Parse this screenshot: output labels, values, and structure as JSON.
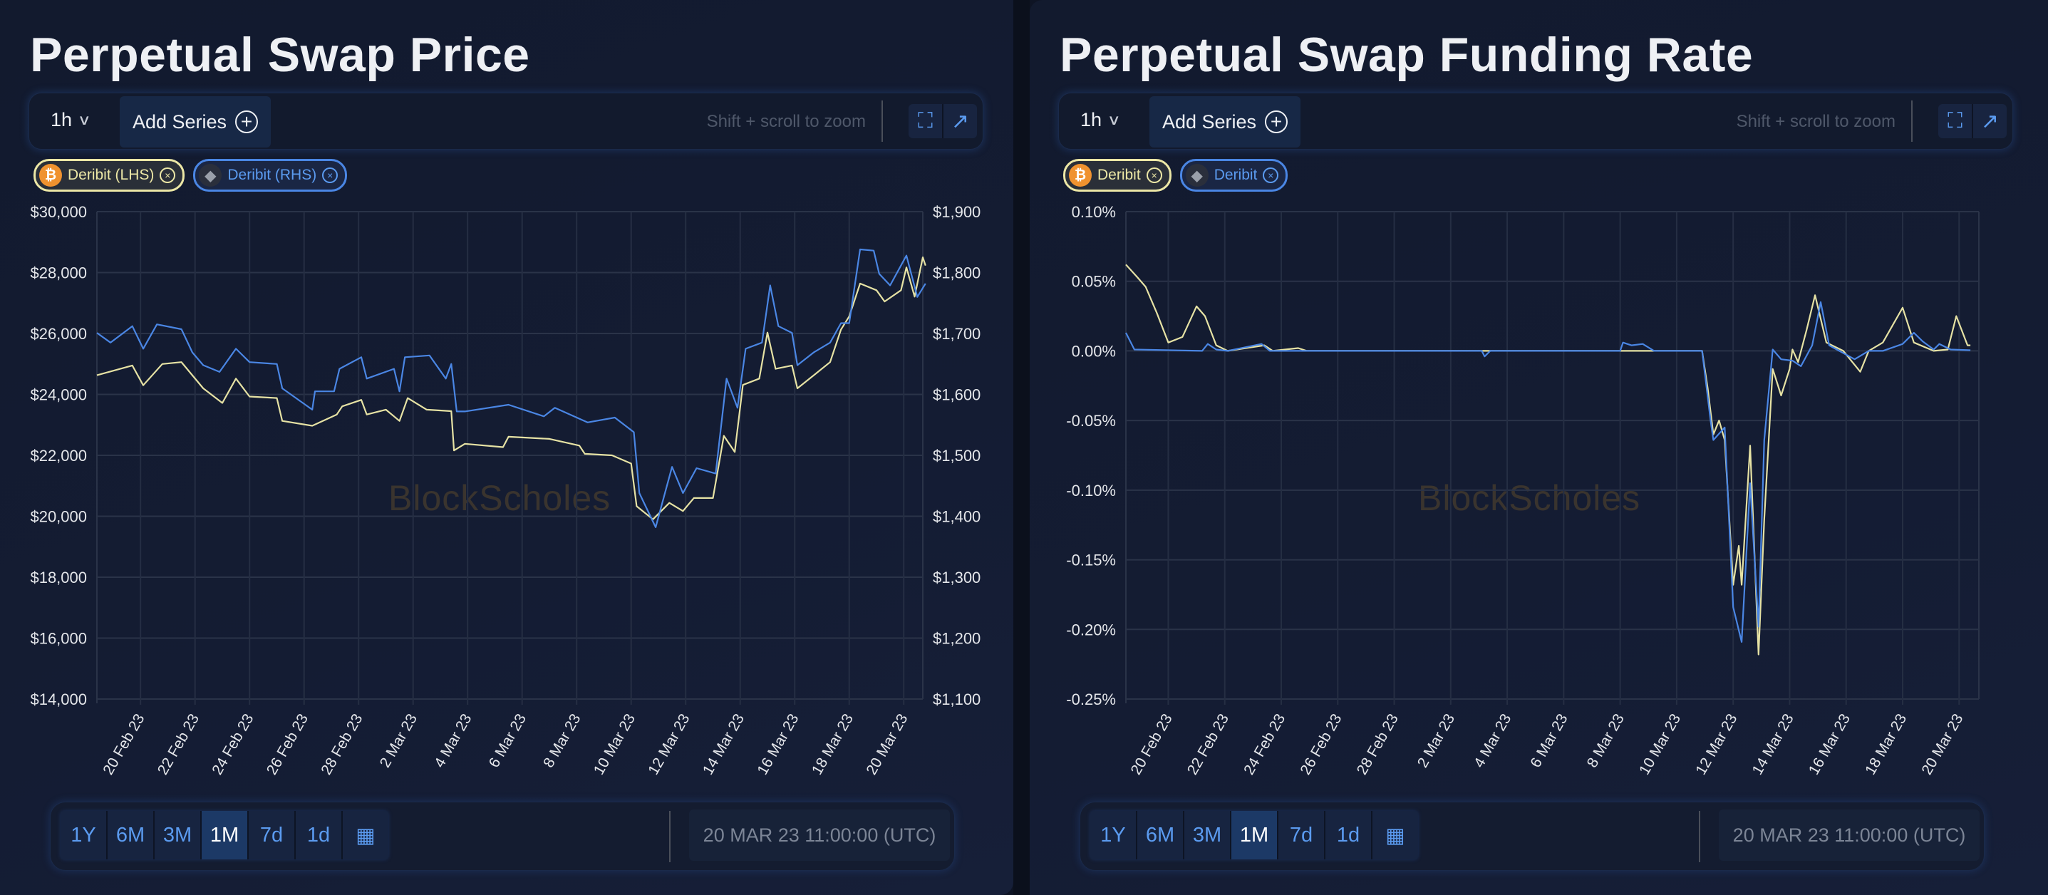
{
  "panels": [
    {
      "title": "Perpetual Swap Price",
      "interval": "1h",
      "add_series_label": "Add Series",
      "zoom_hint": "Shift + scroll to zoom",
      "chips": [
        {
          "label": "Deribit (LHS)",
          "coin": "btc",
          "color": "#ece7a6"
        },
        {
          "label": "Deribit (RHS)",
          "coin": "eth",
          "color": "#4a86e4"
        }
      ],
      "watermark": "BlockScholes",
      "ranges": [
        "1Y",
        "6M",
        "3M",
        "1M",
        "7d",
        "1d"
      ],
      "active_range": "1M",
      "timestamp": "20 MAR 23 11:00:00 (UTC)"
    },
    {
      "title": "Perpetual Swap Funding Rate",
      "interval": "1h",
      "add_series_label": "Add Series",
      "zoom_hint": "Shift + scroll to zoom",
      "chips": [
        {
          "label": "Deribit",
          "coin": "btc",
          "color": "#ece7a6"
        },
        {
          "label": "Deribit",
          "coin": "eth",
          "color": "#4a86e4"
        }
      ],
      "watermark": "BlockScholes",
      "ranges": [
        "1Y",
        "6M",
        "3M",
        "1M",
        "7d",
        "1d"
      ],
      "active_range": "1M",
      "timestamp": "20 MAR 23 11:00:00 (UTC)"
    }
  ],
  "chart_data": [
    {
      "type": "line",
      "title": "Perpetual Swap Price",
      "x_unit": "days since 20 Feb 23",
      "xlim": [
        -1.6,
        28.7
      ],
      "x_ticks": [
        0,
        2,
        4,
        6,
        8,
        10,
        12,
        14,
        16,
        18,
        20,
        22,
        24,
        26,
        28
      ],
      "x_tick_labels": [
        "20 Feb 23",
        "22 Feb 23",
        "24 Feb 23",
        "26 Feb 23",
        "28 Feb 23",
        "2 Mar 23",
        "4 Mar 23",
        "6 Mar 23",
        "8 Mar 23",
        "10 Mar 23",
        "12 Mar 23",
        "14 Mar 23",
        "16 Mar 23",
        "18 Mar 23",
        "20 Mar 23"
      ],
      "ylim_left": [
        14000,
        30000
      ],
      "y_ticks_left": [
        "$30,000",
        "$28,000",
        "$26,000",
        "$24,000",
        "$22,000",
        "$20,000",
        "$18,000",
        "$16,000",
        "$14,000"
      ],
      "ylim_right": [
        1100,
        1900
      ],
      "y_ticks_right": [
        "$1,900",
        "$1,800",
        "$1,700",
        "$1,600",
        "$1,500",
        "$1,400",
        "$1,300",
        "$1,200",
        "$1,100"
      ],
      "grid": true,
      "series": [
        {
          "name": "Deribit (LHS) BTC",
          "axis": "left",
          "color": "#e6e2a4",
          "points": [
            [
              -1.6,
              24630
            ],
            [
              -0.3,
              24950
            ],
            [
              0.1,
              24300
            ],
            [
              0.8,
              25000
            ],
            [
              1.5,
              25060
            ],
            [
              2.3,
              24200
            ],
            [
              3.0,
              23720
            ],
            [
              3.5,
              24520
            ],
            [
              4.0,
              23930
            ],
            [
              5.0,
              23880
            ],
            [
              5.2,
              23130
            ],
            [
              6.3,
              22970
            ],
            [
              7.2,
              23340
            ],
            [
              7.4,
              23610
            ],
            [
              8.1,
              23820
            ],
            [
              8.3,
              23340
            ],
            [
              9.0,
              23500
            ],
            [
              9.5,
              23130
            ],
            [
              9.8,
              23880
            ],
            [
              10.5,
              23500
            ],
            [
              11.4,
              23450
            ],
            [
              11.5,
              22160
            ],
            [
              11.9,
              22380
            ],
            [
              13.3,
              22270
            ],
            [
              13.5,
              22610
            ],
            [
              15.0,
              22540
            ],
            [
              16.1,
              22320
            ],
            [
              16.3,
              22050
            ],
            [
              17.3,
              22000
            ],
            [
              18.0,
              21730
            ],
            [
              18.2,
              20330
            ],
            [
              18.8,
              19900
            ],
            [
              19.4,
              20440
            ],
            [
              19.9,
              20170
            ],
            [
              20.3,
              20600
            ],
            [
              21.0,
              20600
            ],
            [
              21.4,
              22640
            ],
            [
              21.8,
              22110
            ],
            [
              22.1,
              24310
            ],
            [
              22.7,
              24520
            ],
            [
              23.0,
              26030
            ],
            [
              23.3,
              24840
            ],
            [
              23.9,
              24950
            ],
            [
              24.1,
              24200
            ],
            [
              24.7,
              24630
            ],
            [
              25.3,
              25060
            ],
            [
              25.7,
              26130
            ],
            [
              26.0,
              26560
            ],
            [
              26.4,
              27640
            ],
            [
              27.0,
              27420
            ],
            [
              27.3,
              27050
            ],
            [
              27.9,
              27420
            ],
            [
              28.1,
              28170
            ],
            [
              28.4,
              27210
            ],
            [
              28.7,
              28500
            ],
            [
              28.8,
              28230
            ]
          ]
        },
        {
          "name": "Deribit (RHS) ETH",
          "axis": "right",
          "color": "#4a86e4",
          "points": [
            [
              -1.6,
              1701
            ],
            [
              -1.1,
              1685
            ],
            [
              -0.3,
              1712
            ],
            [
              0.1,
              1675
            ],
            [
              0.6,
              1715
            ],
            [
              1.5,
              1707
            ],
            [
              1.9,
              1669
            ],
            [
              2.3,
              1648
            ],
            [
              2.9,
              1637
            ],
            [
              3.5,
              1675
            ],
            [
              4.0,
              1653
            ],
            [
              5.0,
              1650
            ],
            [
              5.2,
              1610
            ],
            [
              6.3,
              1575
            ],
            [
              6.4,
              1605
            ],
            [
              7.1,
              1605
            ],
            [
              7.3,
              1642
            ],
            [
              8.1,
              1661
            ],
            [
              8.3,
              1626
            ],
            [
              9.3,
              1642
            ],
            [
              9.5,
              1605
            ],
            [
              9.7,
              1661
            ],
            [
              10.6,
              1664
            ],
            [
              11.2,
              1626
            ],
            [
              11.4,
              1650
            ],
            [
              11.6,
              1572
            ],
            [
              11.9,
              1572
            ],
            [
              13.5,
              1583
            ],
            [
              14.8,
              1564
            ],
            [
              15.2,
              1578
            ],
            [
              16.4,
              1554
            ],
            [
              17.4,
              1562
            ],
            [
              18.1,
              1538
            ],
            [
              18.3,
              1438
            ],
            [
              18.9,
              1382
            ],
            [
              19.5,
              1481
            ],
            [
              19.9,
              1438
            ],
            [
              20.4,
              1479
            ],
            [
              21.1,
              1470
            ],
            [
              21.5,
              1626
            ],
            [
              21.9,
              1578
            ],
            [
              22.2,
              1675
            ],
            [
              22.8,
              1685
            ],
            [
              23.1,
              1779
            ],
            [
              23.4,
              1712
            ],
            [
              23.9,
              1701
            ],
            [
              24.1,
              1648
            ],
            [
              24.7,
              1669
            ],
            [
              25.3,
              1685
            ],
            [
              25.7,
              1717
            ],
            [
              26.0,
              1717
            ],
            [
              26.4,
              1838
            ],
            [
              26.9,
              1836
            ],
            [
              27.1,
              1798
            ],
            [
              27.5,
              1779
            ],
            [
              28.1,
              1828
            ],
            [
              28.5,
              1760
            ],
            [
              28.8,
              1782
            ]
          ]
        }
      ]
    },
    {
      "type": "line",
      "title": "Perpetual Swap Funding Rate",
      "x_unit": "days since 20 Feb 23",
      "xlim": [
        -1.5,
        28.7
      ],
      "x_ticks": [
        0,
        2,
        4,
        6,
        8,
        10,
        12,
        14,
        16,
        18,
        20,
        22,
        24,
        26,
        28
      ],
      "x_tick_labels": [
        "20 Feb 23",
        "22 Feb 23",
        "24 Feb 23",
        "26 Feb 23",
        "28 Feb 23",
        "2 Mar 23",
        "4 Mar 23",
        "6 Mar 23",
        "8 Mar 23",
        "10 Mar 23",
        "12 Mar 23",
        "14 Mar 23",
        "16 Mar 23",
        "18 Mar 23",
        "20 Mar 23"
      ],
      "ylim_left": [
        -0.25,
        0.1
      ],
      "y_ticks_left": [
        "0.10%",
        "0.05%",
        "0.00%",
        "-0.05%",
        "-0.10%",
        "-0.15%",
        "-0.20%",
        "-0.25%"
      ],
      "y_unit": "%",
      "grid": true,
      "series": [
        {
          "name": "Deribit BTC",
          "axis": "left",
          "color": "#e6e2a4",
          "points": [
            [
              -1.5,
              0.062
            ],
            [
              -1.1,
              0.053
            ],
            [
              -0.8,
              0.046
            ],
            [
              -0.4,
              0.027
            ],
            [
              0.0,
              0.006
            ],
            [
              0.5,
              0.01
            ],
            [
              1.0,
              0.032
            ],
            [
              1.3,
              0.025
            ],
            [
              1.7,
              0.004
            ],
            [
              2.1,
              0.0
            ],
            [
              3.4,
              0.004
            ],
            [
              3.7,
              0.0
            ],
            [
              4.6,
              0.002
            ],
            [
              4.9,
              0.0
            ],
            [
              18.9,
              0.0
            ],
            [
              19.1,
              -0.027
            ],
            [
              19.3,
              -0.06
            ],
            [
              19.5,
              -0.05
            ],
            [
              19.7,
              -0.064
            ],
            [
              20.0,
              -0.168
            ],
            [
              20.2,
              -0.14
            ],
            [
              20.3,
              -0.168
            ],
            [
              20.6,
              -0.068
            ],
            [
              20.9,
              -0.218
            ],
            [
              21.1,
              -0.121
            ],
            [
              21.4,
              -0.013
            ],
            [
              21.7,
              -0.032
            ],
            [
              22.0,
              -0.013
            ],
            [
              22.1,
              0.001
            ],
            [
              22.3,
              -0.008
            ],
            [
              22.6,
              0.015
            ],
            [
              22.9,
              0.04
            ],
            [
              23.3,
              0.006
            ],
            [
              23.9,
              0.0
            ],
            [
              24.5,
              -0.015
            ],
            [
              24.8,
              0.0
            ],
            [
              25.3,
              0.006
            ],
            [
              26.0,
              0.031
            ],
            [
              26.4,
              0.006
            ],
            [
              27.1,
              0.0
            ],
            [
              27.6,
              0.001
            ],
            [
              27.9,
              0.025
            ],
            [
              28.3,
              0.004
            ],
            [
              28.4,
              0.004
            ]
          ]
        },
        {
          "name": "Deribit ETH",
          "axis": "left",
          "color": "#4a86e4",
          "points": [
            [
              -1.5,
              0.013
            ],
            [
              -1.2,
              0.001
            ],
            [
              1.2,
              0.0
            ],
            [
              1.4,
              0.005
            ],
            [
              1.7,
              0.001
            ],
            [
              2.1,
              0.0
            ],
            [
              3.3,
              0.005
            ],
            [
              3.6,
              0.0
            ],
            [
              11.1,
              0.0
            ],
            [
              11.2,
              -0.004
            ],
            [
              11.4,
              0.0
            ],
            [
              16.0,
              0.0
            ],
            [
              16.1,
              0.006
            ],
            [
              16.4,
              0.004
            ],
            [
              16.8,
              0.005
            ],
            [
              17.2,
              0.0
            ],
            [
              18.9,
              0.0
            ],
            [
              19.2,
              -0.05
            ],
            [
              19.3,
              -0.064
            ],
            [
              19.7,
              -0.055
            ],
            [
              20.0,
              -0.184
            ],
            [
              20.3,
              -0.209
            ],
            [
              20.6,
              -0.095
            ],
            [
              20.9,
              -0.198
            ],
            [
              21.1,
              -0.064
            ],
            [
              21.4,
              0.001
            ],
            [
              21.7,
              -0.006
            ],
            [
              22.1,
              -0.007
            ],
            [
              22.4,
              -0.011
            ],
            [
              22.8,
              0.004
            ],
            [
              23.1,
              0.035
            ],
            [
              23.4,
              0.004
            ],
            [
              24.3,
              -0.006
            ],
            [
              24.8,
              0.0
            ],
            [
              25.3,
              0.0
            ],
            [
              26.0,
              0.005
            ],
            [
              26.4,
              0.013
            ],
            [
              26.7,
              0.007
            ],
            [
              27.1,
              0.001
            ],
            [
              27.3,
              0.005
            ],
            [
              27.7,
              0.001
            ],
            [
              28.4,
              0.0005
            ]
          ]
        }
      ]
    }
  ]
}
